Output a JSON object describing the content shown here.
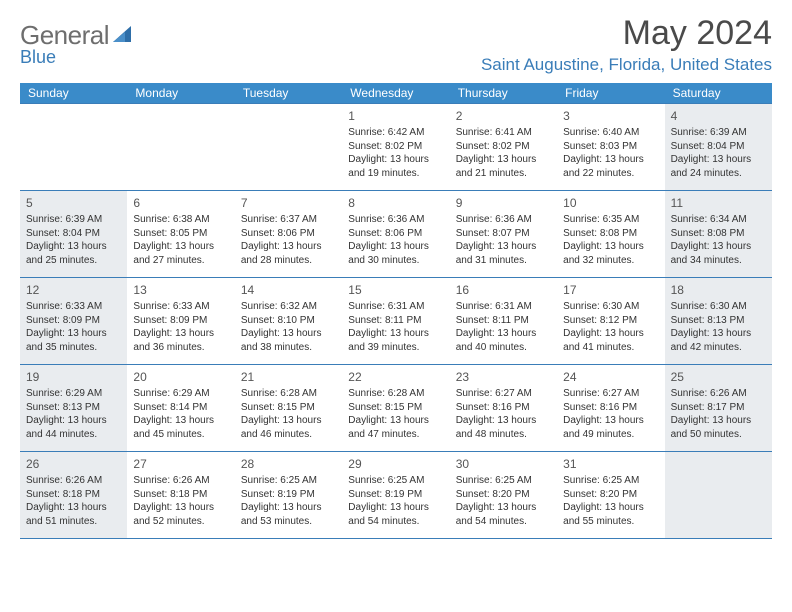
{
  "logo": {
    "part1": "General",
    "part2": "Blue"
  },
  "title": "May 2024",
  "location": "Saint Augustine, Florida, United States",
  "colors": {
    "header_bg": "#3a8bc9",
    "header_text": "#ffffff",
    "border": "#3a7db8",
    "shaded_bg": "#e9ecef",
    "title_text": "#4a4a4a",
    "location_text": "#3a7db8",
    "logo_gray": "#6e6e6e"
  },
  "dayNames": [
    "Sunday",
    "Monday",
    "Tuesday",
    "Wednesday",
    "Thursday",
    "Friday",
    "Saturday"
  ],
  "weeks": [
    [
      {
        "shaded": false
      },
      {
        "shaded": false
      },
      {
        "shaded": false
      },
      {
        "day": "1",
        "sunrise": "6:42 AM",
        "sunset": "8:02 PM",
        "daylight": "13 hours and 19 minutes.",
        "shaded": false
      },
      {
        "day": "2",
        "sunrise": "6:41 AM",
        "sunset": "8:02 PM",
        "daylight": "13 hours and 21 minutes.",
        "shaded": false
      },
      {
        "day": "3",
        "sunrise": "6:40 AM",
        "sunset": "8:03 PM",
        "daylight": "13 hours and 22 minutes.",
        "shaded": false
      },
      {
        "day": "4",
        "sunrise": "6:39 AM",
        "sunset": "8:04 PM",
        "daylight": "13 hours and 24 minutes.",
        "shaded": true
      }
    ],
    [
      {
        "day": "5",
        "sunrise": "6:39 AM",
        "sunset": "8:04 PM",
        "daylight": "13 hours and 25 minutes.",
        "shaded": true
      },
      {
        "day": "6",
        "sunrise": "6:38 AM",
        "sunset": "8:05 PM",
        "daylight": "13 hours and 27 minutes.",
        "shaded": false
      },
      {
        "day": "7",
        "sunrise": "6:37 AM",
        "sunset": "8:06 PM",
        "daylight": "13 hours and 28 minutes.",
        "shaded": false
      },
      {
        "day": "8",
        "sunrise": "6:36 AM",
        "sunset": "8:06 PM",
        "daylight": "13 hours and 30 minutes.",
        "shaded": false
      },
      {
        "day": "9",
        "sunrise": "6:36 AM",
        "sunset": "8:07 PM",
        "daylight": "13 hours and 31 minutes.",
        "shaded": false
      },
      {
        "day": "10",
        "sunrise": "6:35 AM",
        "sunset": "8:08 PM",
        "daylight": "13 hours and 32 minutes.",
        "shaded": false
      },
      {
        "day": "11",
        "sunrise": "6:34 AM",
        "sunset": "8:08 PM",
        "daylight": "13 hours and 34 minutes.",
        "shaded": true
      }
    ],
    [
      {
        "day": "12",
        "sunrise": "6:33 AM",
        "sunset": "8:09 PM",
        "daylight": "13 hours and 35 minutes.",
        "shaded": true
      },
      {
        "day": "13",
        "sunrise": "6:33 AM",
        "sunset": "8:09 PM",
        "daylight": "13 hours and 36 minutes.",
        "shaded": false
      },
      {
        "day": "14",
        "sunrise": "6:32 AM",
        "sunset": "8:10 PM",
        "daylight": "13 hours and 38 minutes.",
        "shaded": false
      },
      {
        "day": "15",
        "sunrise": "6:31 AM",
        "sunset": "8:11 PM",
        "daylight": "13 hours and 39 minutes.",
        "shaded": false
      },
      {
        "day": "16",
        "sunrise": "6:31 AM",
        "sunset": "8:11 PM",
        "daylight": "13 hours and 40 minutes.",
        "shaded": false
      },
      {
        "day": "17",
        "sunrise": "6:30 AM",
        "sunset": "8:12 PM",
        "daylight": "13 hours and 41 minutes.",
        "shaded": false
      },
      {
        "day": "18",
        "sunrise": "6:30 AM",
        "sunset": "8:13 PM",
        "daylight": "13 hours and 42 minutes.",
        "shaded": true
      }
    ],
    [
      {
        "day": "19",
        "sunrise": "6:29 AM",
        "sunset": "8:13 PM",
        "daylight": "13 hours and 44 minutes.",
        "shaded": true
      },
      {
        "day": "20",
        "sunrise": "6:29 AM",
        "sunset": "8:14 PM",
        "daylight": "13 hours and 45 minutes.",
        "shaded": false
      },
      {
        "day": "21",
        "sunrise": "6:28 AM",
        "sunset": "8:15 PM",
        "daylight": "13 hours and 46 minutes.",
        "shaded": false
      },
      {
        "day": "22",
        "sunrise": "6:28 AM",
        "sunset": "8:15 PM",
        "daylight": "13 hours and 47 minutes.",
        "shaded": false
      },
      {
        "day": "23",
        "sunrise": "6:27 AM",
        "sunset": "8:16 PM",
        "daylight": "13 hours and 48 minutes.",
        "shaded": false
      },
      {
        "day": "24",
        "sunrise": "6:27 AM",
        "sunset": "8:16 PM",
        "daylight": "13 hours and 49 minutes.",
        "shaded": false
      },
      {
        "day": "25",
        "sunrise": "6:26 AM",
        "sunset": "8:17 PM",
        "daylight": "13 hours and 50 minutes.",
        "shaded": true
      }
    ],
    [
      {
        "day": "26",
        "sunrise": "6:26 AM",
        "sunset": "8:18 PM",
        "daylight": "13 hours and 51 minutes.",
        "shaded": true
      },
      {
        "day": "27",
        "sunrise": "6:26 AM",
        "sunset": "8:18 PM",
        "daylight": "13 hours and 52 minutes.",
        "shaded": false
      },
      {
        "day": "28",
        "sunrise": "6:25 AM",
        "sunset": "8:19 PM",
        "daylight": "13 hours and 53 minutes.",
        "shaded": false
      },
      {
        "day": "29",
        "sunrise": "6:25 AM",
        "sunset": "8:19 PM",
        "daylight": "13 hours and 54 minutes.",
        "shaded": false
      },
      {
        "day": "30",
        "sunrise": "6:25 AM",
        "sunset": "8:20 PM",
        "daylight": "13 hours and 54 minutes.",
        "shaded": false
      },
      {
        "day": "31",
        "sunrise": "6:25 AM",
        "sunset": "8:20 PM",
        "daylight": "13 hours and 55 minutes.",
        "shaded": false
      },
      {
        "shaded": true
      }
    ]
  ]
}
